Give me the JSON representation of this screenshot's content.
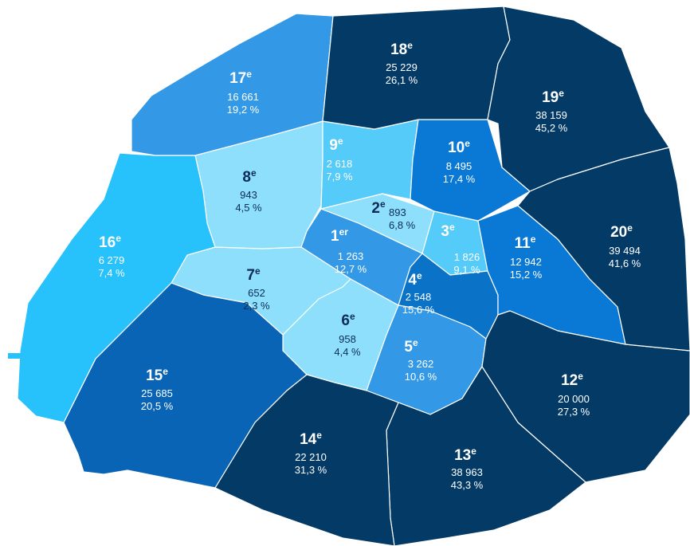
{
  "districts": [
    {
      "number": "1",
      "suffix": "er",
      "count": "1 263",
      "share": "12,7 %",
      "color": "#3399e6",
      "text_color": "#ffffff"
    },
    {
      "number": "2",
      "suffix": "e",
      "count": "893",
      "share": "6,8 %",
      "color": "#8ddffb",
      "text_color": "#0c2c55"
    },
    {
      "number": "3",
      "suffix": "e",
      "count": "1 826",
      "share": "9,1 %",
      "color": "#55cbf9",
      "text_color": "#ffffff"
    },
    {
      "number": "4",
      "suffix": "e",
      "count": "2 548",
      "share": "15,6 %",
      "color": "#0a73c8",
      "text_color": "#ffffff"
    },
    {
      "number": "5",
      "suffix": "e",
      "count": "3 262",
      "share": "10,6 %",
      "color": "#3399e6",
      "text_color": "#ffffff"
    },
    {
      "number": "6",
      "suffix": "e",
      "count": "958",
      "share": "4,4 %",
      "color": "#8ddffb",
      "text_color": "#0c2c55"
    },
    {
      "number": "7",
      "suffix": "e",
      "count": "652",
      "share": "2,3 %",
      "color": "#8ddffb",
      "text_color": "#0c2c55"
    },
    {
      "number": "8",
      "suffix": "e",
      "count": "943",
      "share": "4,5 %",
      "color": "#8ddffb",
      "text_color": "#0c2c55"
    },
    {
      "number": "9",
      "suffix": "e",
      "count": "2 618",
      "share": "7,9 %",
      "color": "#55cbf9",
      "text_color": "#ffffff"
    },
    {
      "number": "10",
      "suffix": "e",
      "count": "8 495",
      "share": "17,4 %",
      "color": "#0a79d6",
      "text_color": "#ffffff"
    },
    {
      "number": "11",
      "suffix": "e",
      "count": "12 942",
      "share": "15,2 %",
      "color": "#0a79d6",
      "text_color": "#ffffff"
    },
    {
      "number": "12",
      "suffix": "e",
      "count": "20 000",
      "share": "27,3 %",
      "color": "#043a66",
      "text_color": "#ffffff"
    },
    {
      "number": "13",
      "suffix": "e",
      "count": "38 963",
      "share": "43,3 %",
      "color": "#043a66",
      "text_color": "#ffffff"
    },
    {
      "number": "14",
      "suffix": "e",
      "count": "22 210",
      "share": "31,3 %",
      "color": "#043a66",
      "text_color": "#ffffff"
    },
    {
      "number": "15",
      "suffix": "e",
      "count": "25 685",
      "share": "20,5 %",
      "color": "#0a64b5",
      "text_color": "#ffffff"
    },
    {
      "number": "16",
      "suffix": "e",
      "count": "6 279",
      "share": "7,4 %",
      "color": "#27c1fb",
      "text_color": "#ffffff"
    },
    {
      "number": "17",
      "suffix": "e",
      "count": "16 661",
      "share": "19,2 %",
      "color": "#3399e6",
      "text_color": "#ffffff"
    },
    {
      "number": "18",
      "suffix": "e",
      "count": "25 229",
      "share": "26,1 %",
      "color": "#043a66",
      "text_color": "#ffffff"
    },
    {
      "number": "19",
      "suffix": "e",
      "count": "38 159",
      "share": "45,2 %",
      "color": "#043a66",
      "text_color": "#ffffff"
    },
    {
      "number": "20",
      "suffix": "e",
      "count": "39 494",
      "share": "41,6 %",
      "color": "#043a66",
      "text_color": "#ffffff"
    }
  ]
}
